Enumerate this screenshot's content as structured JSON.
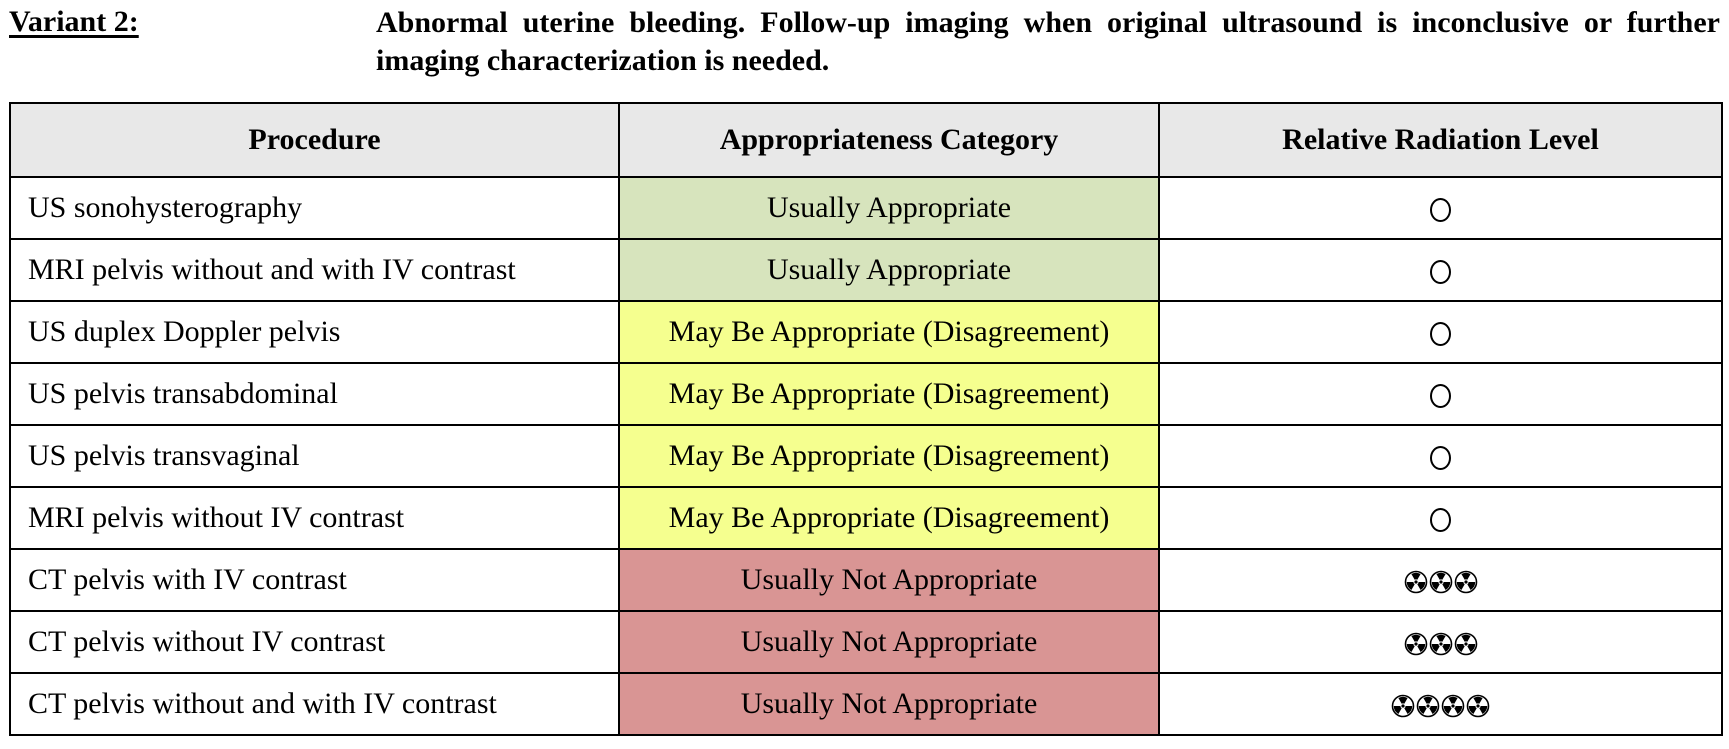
{
  "variant": {
    "label": "Variant 2:",
    "title": "Abnormal uterine bleeding. Follow-up imaging when original ultrasound is inconclusive or further imaging characterization is needed."
  },
  "table": {
    "headers": [
      "Procedure",
      "Appropriateness Category",
      "Relative Radiation Level"
    ],
    "category_colors": {
      "Usually Appropriate": "#d7e4bd",
      "May Be Appropriate (Disagreement)": "#f5ff8f",
      "Usually Not Appropriate": "#d99594"
    },
    "rows": [
      {
        "procedure": "US sonohysterography",
        "category": "Usually Appropriate",
        "radiation_level": 0
      },
      {
        "procedure": "MRI pelvis without and with IV contrast",
        "category": "Usually Appropriate",
        "radiation_level": 0
      },
      {
        "procedure": "US duplex Doppler pelvis",
        "category": "May Be Appropriate (Disagreement)",
        "radiation_level": 0
      },
      {
        "procedure": "US pelvis transabdominal",
        "category": "May Be Appropriate (Disagreement)",
        "radiation_level": 0
      },
      {
        "procedure": "US pelvis transvaginal",
        "category": "May Be Appropriate (Disagreement)",
        "radiation_level": 0
      },
      {
        "procedure": "MRI pelvis without IV contrast",
        "category": "May Be Appropriate (Disagreement)",
        "radiation_level": 0
      },
      {
        "procedure": "CT pelvis with IV contrast",
        "category": "Usually Not Appropriate",
        "radiation_level": 3
      },
      {
        "procedure": "CT pelvis without IV contrast",
        "category": "Usually Not Appropriate",
        "radiation_level": 3
      },
      {
        "procedure": "CT pelvis without and with IV contrast",
        "category": "Usually Not Appropriate",
        "radiation_level": 4
      }
    ]
  }
}
